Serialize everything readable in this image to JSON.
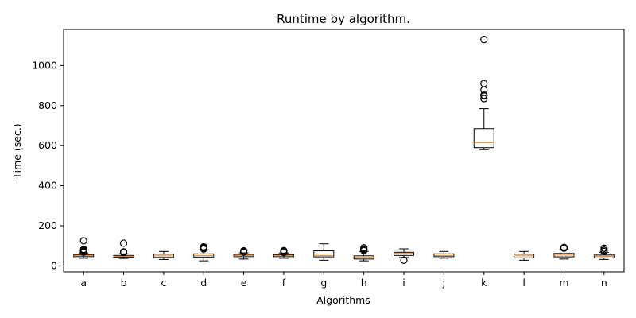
{
  "chart_data": {
    "type": "box",
    "title": "Runtime by algorithm.",
    "xlabel": "Algorithms",
    "ylabel": "Time (sec.)",
    "ylim": [
      -30,
      1180
    ],
    "yticks": [
      0,
      200,
      400,
      600,
      800,
      1000
    ],
    "grid": false,
    "colors": {
      "box": "#000000",
      "median": "#ff7f0e",
      "flier": "#000000"
    },
    "categories": [
      "a",
      "b",
      "c",
      "d",
      "e",
      "f",
      "g",
      "h",
      "i",
      "j",
      "k",
      "l",
      "m",
      "n"
    ],
    "boxes": [
      {
        "label": "a",
        "whislo": 38,
        "q1": 46,
        "med": 52,
        "q3": 56,
        "whishi": 64,
        "fliers": [
          68,
          72,
          75,
          78,
          82,
          125
        ]
      },
      {
        "label": "b",
        "whislo": 37,
        "q1": 43,
        "med": 48,
        "q3": 52,
        "whishi": 60,
        "fliers": [
          66,
          70,
          113
        ]
      },
      {
        "label": "c",
        "whislo": 32,
        "q1": 42,
        "med": 50,
        "q3": 58,
        "whishi": 72,
        "fliers": []
      },
      {
        "label": "d",
        "whislo": 25,
        "q1": 44,
        "med": 52,
        "q3": 60,
        "whishi": 80,
        "fliers": [
          84,
          88,
          92,
          95
        ]
      },
      {
        "label": "e",
        "whislo": 34,
        "q1": 46,
        "med": 52,
        "q3": 57,
        "whishi": 65,
        "fliers": [
          68,
          72,
          75
        ]
      },
      {
        "label": "f",
        "whislo": 38,
        "q1": 46,
        "med": 51,
        "q3": 56,
        "whishi": 64,
        "fliers": [
          67,
          72,
          76
        ]
      },
      {
        "label": "g",
        "whislo": 28,
        "q1": 45,
        "med": 52,
        "q3": 75,
        "whishi": 110,
        "fliers": []
      },
      {
        "label": "h",
        "whislo": 25,
        "q1": 34,
        "med": 42,
        "q3": 50,
        "whishi": 72,
        "fliers": [
          76,
          80,
          84,
          90
        ]
      },
      {
        "label": "i",
        "whislo": 42,
        "q1": 52,
        "med": 62,
        "q3": 68,
        "whishi": 85,
        "fliers": [
          28
        ]
      },
      {
        "label": "j",
        "whislo": 38,
        "q1": 46,
        "med": 52,
        "q3": 60,
        "whishi": 72,
        "fliers": []
      },
      {
        "label": "k",
        "whislo": 580,
        "q1": 590,
        "med": 615,
        "q3": 685,
        "whishi": 785,
        "fliers": [
          835,
          848,
          852,
          878,
          910,
          1130
        ]
      },
      {
        "label": "l",
        "whislo": 28,
        "q1": 40,
        "med": 50,
        "q3": 58,
        "whishi": 72,
        "fliers": []
      },
      {
        "label": "m",
        "whislo": 34,
        "q1": 45,
        "med": 54,
        "q3": 62,
        "whishi": 80,
        "fliers": [
          88,
          92
        ]
      },
      {
        "label": "n",
        "whislo": 32,
        "q1": 40,
        "med": 48,
        "q3": 54,
        "whishi": 68,
        "fliers": [
          72,
          78,
          88
        ]
      }
    ]
  }
}
